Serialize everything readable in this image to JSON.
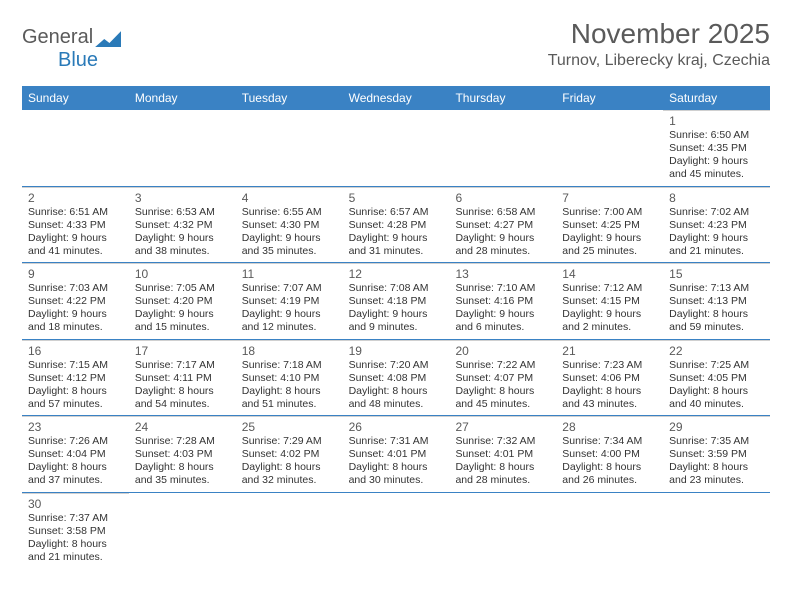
{
  "logo": {
    "text1": "General",
    "text2": "Blue"
  },
  "title": "November 2025",
  "location": "Turnov, Liberecky kraj, Czechia",
  "colors": {
    "header_bg": "#3a82c4",
    "header_text": "#ffffff",
    "row_border": "#3a82c4",
    "cell_border": "#d0d0d0",
    "text": "#333333",
    "muted": "#5a5a5a",
    "logo_blue": "#2a7ab8"
  },
  "weekdays": [
    "Sunday",
    "Monday",
    "Tuesday",
    "Wednesday",
    "Thursday",
    "Friday",
    "Saturday"
  ],
  "weeks": [
    [
      null,
      null,
      null,
      null,
      null,
      null,
      {
        "n": "1",
        "sr": "6:50 AM",
        "ss": "4:35 PM",
        "dh": "9",
        "dm": "45"
      }
    ],
    [
      {
        "n": "2",
        "sr": "6:51 AM",
        "ss": "4:33 PM",
        "dh": "9",
        "dm": "41"
      },
      {
        "n": "3",
        "sr": "6:53 AM",
        "ss": "4:32 PM",
        "dh": "9",
        "dm": "38"
      },
      {
        "n": "4",
        "sr": "6:55 AM",
        "ss": "4:30 PM",
        "dh": "9",
        "dm": "35"
      },
      {
        "n": "5",
        "sr": "6:57 AM",
        "ss": "4:28 PM",
        "dh": "9",
        "dm": "31"
      },
      {
        "n": "6",
        "sr": "6:58 AM",
        "ss": "4:27 PM",
        "dh": "9",
        "dm": "28"
      },
      {
        "n": "7",
        "sr": "7:00 AM",
        "ss": "4:25 PM",
        "dh": "9",
        "dm": "25"
      },
      {
        "n": "8",
        "sr": "7:02 AM",
        "ss": "4:23 PM",
        "dh": "9",
        "dm": "21"
      }
    ],
    [
      {
        "n": "9",
        "sr": "7:03 AM",
        "ss": "4:22 PM",
        "dh": "9",
        "dm": "18"
      },
      {
        "n": "10",
        "sr": "7:05 AM",
        "ss": "4:20 PM",
        "dh": "9",
        "dm": "15"
      },
      {
        "n": "11",
        "sr": "7:07 AM",
        "ss": "4:19 PM",
        "dh": "9",
        "dm": "12"
      },
      {
        "n": "12",
        "sr": "7:08 AM",
        "ss": "4:18 PM",
        "dh": "9",
        "dm": "9"
      },
      {
        "n": "13",
        "sr": "7:10 AM",
        "ss": "4:16 PM",
        "dh": "9",
        "dm": "6"
      },
      {
        "n": "14",
        "sr": "7:12 AM",
        "ss": "4:15 PM",
        "dh": "9",
        "dm": "2"
      },
      {
        "n": "15",
        "sr": "7:13 AM",
        "ss": "4:13 PM",
        "dh": "8",
        "dm": "59"
      }
    ],
    [
      {
        "n": "16",
        "sr": "7:15 AM",
        "ss": "4:12 PM",
        "dh": "8",
        "dm": "57"
      },
      {
        "n": "17",
        "sr": "7:17 AM",
        "ss": "4:11 PM",
        "dh": "8",
        "dm": "54"
      },
      {
        "n": "18",
        "sr": "7:18 AM",
        "ss": "4:10 PM",
        "dh": "8",
        "dm": "51"
      },
      {
        "n": "19",
        "sr": "7:20 AM",
        "ss": "4:08 PM",
        "dh": "8",
        "dm": "48"
      },
      {
        "n": "20",
        "sr": "7:22 AM",
        "ss": "4:07 PM",
        "dh": "8",
        "dm": "45"
      },
      {
        "n": "21",
        "sr": "7:23 AM",
        "ss": "4:06 PM",
        "dh": "8",
        "dm": "43"
      },
      {
        "n": "22",
        "sr": "7:25 AM",
        "ss": "4:05 PM",
        "dh": "8",
        "dm": "40"
      }
    ],
    [
      {
        "n": "23",
        "sr": "7:26 AM",
        "ss": "4:04 PM",
        "dh": "8",
        "dm": "37"
      },
      {
        "n": "24",
        "sr": "7:28 AM",
        "ss": "4:03 PM",
        "dh": "8",
        "dm": "35"
      },
      {
        "n": "25",
        "sr": "7:29 AM",
        "ss": "4:02 PM",
        "dh": "8",
        "dm": "32"
      },
      {
        "n": "26",
        "sr": "7:31 AM",
        "ss": "4:01 PM",
        "dh": "8",
        "dm": "30"
      },
      {
        "n": "27",
        "sr": "7:32 AM",
        "ss": "4:01 PM",
        "dh": "8",
        "dm": "28"
      },
      {
        "n": "28",
        "sr": "7:34 AM",
        "ss": "4:00 PM",
        "dh": "8",
        "dm": "26"
      },
      {
        "n": "29",
        "sr": "7:35 AM",
        "ss": "3:59 PM",
        "dh": "8",
        "dm": "23"
      }
    ],
    [
      {
        "n": "30",
        "sr": "7:37 AM",
        "ss": "3:58 PM",
        "dh": "8",
        "dm": "21"
      },
      null,
      null,
      null,
      null,
      null,
      null
    ]
  ],
  "labels": {
    "sunrise": "Sunrise:",
    "sunset": "Sunset:",
    "daylight": "Daylight:",
    "hours": "hours",
    "and": "and",
    "minutes": "minutes."
  }
}
